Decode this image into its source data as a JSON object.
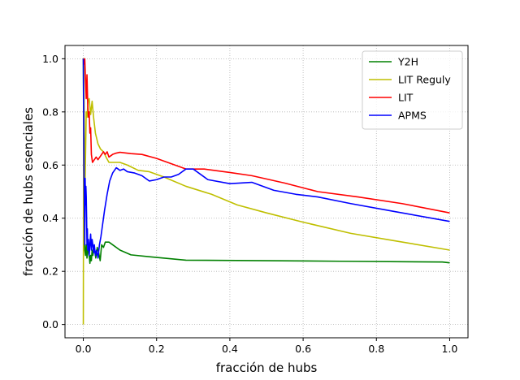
{
  "chart_data": {
    "type": "line",
    "xlabel": "fracción de hubs",
    "ylabel": "fracción de hubs esenciales",
    "xlim": [
      -0.05,
      1.05
    ],
    "ylim": [
      -0.05,
      1.05
    ],
    "xticks": [
      "0.0",
      "0.2",
      "0.4",
      "0.6",
      "0.8",
      "1.0"
    ],
    "xtick_values": [
      0,
      0.2,
      0.4,
      0.6,
      0.8,
      1.0
    ],
    "yticks": [
      "0.0",
      "0.2",
      "0.4",
      "0.6",
      "0.8",
      "1.0"
    ],
    "ytick_values": [
      0,
      0.2,
      0.4,
      0.6,
      0.8,
      1.0
    ],
    "grid": true,
    "grid_style": "dotted",
    "legend_position": "top-right",
    "series": [
      {
        "name": "Y2H",
        "color": "#008000",
        "x": [
          0.0,
          0.002,
          0.004,
          0.006,
          0.008,
          0.01,
          0.012,
          0.014,
          0.016,
          0.018,
          0.02,
          0.022,
          0.024,
          0.026,
          0.03,
          0.034,
          0.038,
          0.042,
          0.046,
          0.05,
          0.055,
          0.06,
          0.07,
          0.08,
          0.1,
          0.13,
          0.18,
          0.28,
          0.5,
          0.7,
          0.98,
          1.0
        ],
        "y": [
          1.0,
          0.4,
          0.28,
          0.26,
          0.3,
          0.25,
          0.27,
          0.31,
          0.26,
          0.23,
          0.26,
          0.24,
          0.28,
          0.26,
          0.29,
          0.25,
          0.29,
          0.27,
          0.24,
          0.3,
          0.29,
          0.31,
          0.31,
          0.3,
          0.28,
          0.262,
          0.255,
          0.242,
          0.24,
          0.238,
          0.235,
          0.232
        ]
      },
      {
        "name": "LIT Reguly",
        "color": "#bfbf00",
        "x": [
          0.0,
          0.001,
          0.003,
          0.005,
          0.008,
          0.01,
          0.013,
          0.016,
          0.02,
          0.024,
          0.028,
          0.033,
          0.04,
          0.047,
          0.055,
          0.062,
          0.07,
          0.08,
          0.1,
          0.12,
          0.15,
          0.18,
          0.22,
          0.28,
          0.35,
          0.42,
          0.5,
          0.6,
          0.73,
          0.85,
          1.0
        ],
        "y": [
          0.0,
          1.0,
          0.72,
          0.55,
          0.8,
          0.78,
          0.84,
          0.85,
          0.79,
          0.84,
          0.78,
          0.72,
          0.68,
          0.66,
          0.65,
          0.63,
          0.61,
          0.61,
          0.61,
          0.6,
          0.58,
          0.575,
          0.555,
          0.52,
          0.49,
          0.45,
          0.42,
          0.385,
          0.343,
          0.315,
          0.28
        ]
      },
      {
        "name": "LIT",
        "color": "#ff0000",
        "x": [
          0.0,
          0.002,
          0.004,
          0.006,
          0.008,
          0.01,
          0.012,
          0.014,
          0.016,
          0.018,
          0.02,
          0.022,
          0.025,
          0.03,
          0.035,
          0.04,
          0.045,
          0.05,
          0.055,
          0.06,
          0.065,
          0.07,
          0.08,
          0.09,
          0.1,
          0.13,
          0.16,
          0.2,
          0.25,
          0.28,
          0.33,
          0.4,
          0.46,
          0.55,
          0.64,
          0.75,
          0.87,
          1.0
        ],
        "y": [
          1.0,
          0.98,
          1.0,
          0.92,
          0.85,
          0.94,
          0.83,
          0.78,
          0.8,
          0.72,
          0.74,
          0.64,
          0.61,
          0.62,
          0.63,
          0.62,
          0.63,
          0.64,
          0.65,
          0.64,
          0.65,
          0.63,
          0.64,
          0.645,
          0.648,
          0.643,
          0.64,
          0.625,
          0.6,
          0.585,
          0.585,
          0.572,
          0.56,
          0.532,
          0.5,
          0.48,
          0.455,
          0.42
        ]
      },
      {
        "name": "APMS",
        "color": "#0000ff",
        "x": [
          0.0,
          0.002,
          0.003,
          0.004,
          0.005,
          0.006,
          0.007,
          0.008,
          0.009,
          0.01,
          0.011,
          0.012,
          0.014,
          0.016,
          0.018,
          0.02,
          0.022,
          0.024,
          0.026,
          0.028,
          0.03,
          0.033,
          0.036,
          0.04,
          0.044,
          0.048,
          0.052,
          0.058,
          0.065,
          0.072,
          0.08,
          0.09,
          0.1,
          0.11,
          0.12,
          0.14,
          0.16,
          0.18,
          0.2,
          0.22,
          0.24,
          0.26,
          0.28,
          0.3,
          0.34,
          0.4,
          0.46,
          0.52,
          0.58,
          0.64,
          0.73,
          0.85,
          1.0
        ],
        "y": [
          1.0,
          0.55,
          0.42,
          0.3,
          0.55,
          0.45,
          0.52,
          0.48,
          0.4,
          0.3,
          0.36,
          0.28,
          0.32,
          0.26,
          0.3,
          0.34,
          0.28,
          0.32,
          0.3,
          0.27,
          0.3,
          0.26,
          0.28,
          0.25,
          0.3,
          0.33,
          0.37,
          0.43,
          0.49,
          0.54,
          0.57,
          0.59,
          0.58,
          0.585,
          0.575,
          0.57,
          0.56,
          0.54,
          0.545,
          0.555,
          0.555,
          0.565,
          0.585,
          0.585,
          0.545,
          0.53,
          0.535,
          0.505,
          0.49,
          0.48,
          0.455,
          0.425,
          0.388
        ]
      }
    ]
  }
}
